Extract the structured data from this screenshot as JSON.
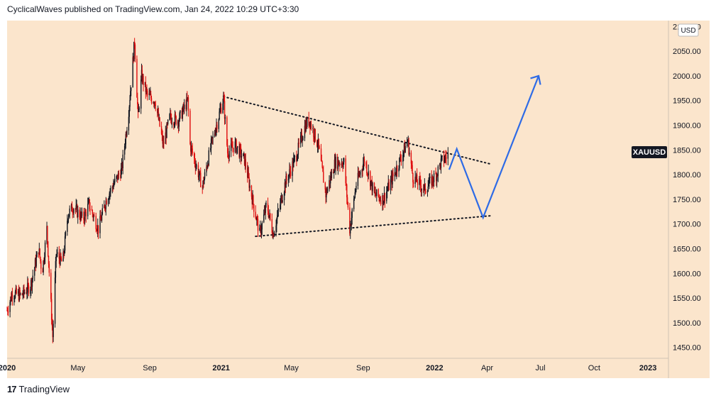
{
  "header": {
    "text": "CyclicalWaves published on TradingView.com, Jan 24, 2022 10:29 UTC+3:30"
  },
  "footer": {
    "logo": "17",
    "brand": "TradingView"
  },
  "colors": {
    "background": "#fbe5cc",
    "up": "#131722",
    "down": "#e01010",
    "forecast": "#2e6be6",
    "trendline": "#131722"
  },
  "chart_data": {
    "type": "candlestick",
    "symbol": "XAUUSD",
    "currency": "USD",
    "yticks": [
      "1450.00",
      "1500.00",
      "1550.00",
      "1600.00",
      "1650.00",
      "1700.00",
      "1750.00",
      "1800.00",
      "1850.00",
      "1900.00",
      "1950.00",
      "2000.00",
      "2050.00",
      "2100.00"
    ],
    "ylim": [
      1428,
      2112
    ],
    "xlim": [
      "2020-01-01",
      "2023-02-05"
    ],
    "xticks": [
      {
        "label": "2020",
        "date": "2020-01-01",
        "bold": true
      },
      {
        "label": "May",
        "date": "2020-05-01",
        "bold": false
      },
      {
        "label": "Sep",
        "date": "2020-09-01",
        "bold": false
      },
      {
        "label": "2021",
        "date": "2021-01-01",
        "bold": true
      },
      {
        "label": "May",
        "date": "2021-05-01",
        "bold": false
      },
      {
        "label": "Sep",
        "date": "2021-09-01",
        "bold": false
      },
      {
        "label": "2022",
        "date": "2022-01-01",
        "bold": true
      },
      {
        "label": "Apr",
        "date": "2022-04-01",
        "bold": false
      },
      {
        "label": "Jul",
        "date": "2022-07-01",
        "bold": false
      },
      {
        "label": "Oct",
        "date": "2022-10-01",
        "bold": false
      },
      {
        "label": "2023",
        "date": "2023-01-01",
        "bold": true
      }
    ],
    "price_path": [
      [
        "2020-01-01",
        1525
      ],
      [
        "2020-01-10",
        1560
      ],
      [
        "2020-01-25",
        1555
      ],
      [
        "2020-02-10",
        1575
      ],
      [
        "2020-02-24",
        1650
      ],
      [
        "2020-03-01",
        1600
      ],
      [
        "2020-03-09",
        1690
      ],
      [
        "2020-03-19",
        1472
      ],
      [
        "2020-03-25",
        1640
      ],
      [
        "2020-04-05",
        1620
      ],
      [
        "2020-04-14",
        1720
      ],
      [
        "2020-04-23",
        1735
      ],
      [
        "2020-05-10",
        1710
      ],
      [
        "2020-05-20",
        1740
      ],
      [
        "2020-06-05",
        1690
      ],
      [
        "2020-06-20",
        1755
      ],
      [
        "2020-07-01",
        1780
      ],
      [
        "2020-07-15",
        1810
      ],
      [
        "2020-07-27",
        1930
      ],
      [
        "2020-08-06",
        2070
      ],
      [
        "2020-08-12",
        1915
      ],
      [
        "2020-08-18",
        2000
      ],
      [
        "2020-08-28",
        1960
      ],
      [
        "2020-09-10",
        1950
      ],
      [
        "2020-09-24",
        1860
      ],
      [
        "2020-10-05",
        1915
      ],
      [
        "2020-10-20",
        1910
      ],
      [
        "2020-11-05",
        1950
      ],
      [
        "2020-11-09",
        1860
      ],
      [
        "2020-11-30",
        1775
      ],
      [
        "2020-12-15",
        1860
      ],
      [
        "2021-01-05",
        1955
      ],
      [
        "2021-01-12",
        1845
      ],
      [
        "2021-01-25",
        1860
      ],
      [
        "2021-02-10",
        1830
      ],
      [
        "2021-02-26",
        1735
      ],
      [
        "2021-03-08",
        1680
      ],
      [
        "2021-03-20",
        1740
      ],
      [
        "2021-03-31",
        1680
      ],
      [
        "2021-04-20",
        1780
      ],
      [
        "2021-05-10",
        1840
      ],
      [
        "2021-05-25",
        1900
      ],
      [
        "2021-06-01",
        1910
      ],
      [
        "2021-06-16",
        1860
      ],
      [
        "2021-06-29",
        1760
      ],
      [
        "2021-07-15",
        1825
      ],
      [
        "2021-07-30",
        1825
      ],
      [
        "2021-08-09",
        1690
      ],
      [
        "2021-08-20",
        1780
      ],
      [
        "2021-09-03",
        1830
      ],
      [
        "2021-09-20",
        1760
      ],
      [
        "2021-10-05",
        1750
      ],
      [
        "2021-10-20",
        1790
      ],
      [
        "2021-11-10",
        1850
      ],
      [
        "2021-11-16",
        1870
      ],
      [
        "2021-11-25",
        1795
      ],
      [
        "2021-12-15",
        1770
      ],
      [
        "2022-01-04",
        1800
      ],
      [
        "2022-01-12",
        1825
      ],
      [
        "2022-01-24",
        1840
      ]
    ],
    "forecast_path": [
      [
        "2022-01-26",
        1810
      ],
      [
        "2022-02-08",
        1852
      ],
      [
        "2022-03-25",
        1713
      ],
      [
        "2022-06-28",
        2000
      ]
    ],
    "arrowhead": [
      [
        "2022-06-14",
        1995
      ],
      [
        "2022-06-28",
        2000
      ],
      [
        "2022-07-01",
        1982
      ]
    ],
    "trendlines": [
      {
        "from": [
          "2021-01-05",
          1958
        ],
        "to": [
          "2022-04-05",
          1822
        ]
      },
      {
        "from": [
          "2021-03-01",
          1675
        ],
        "to": [
          "2022-04-10",
          1717
        ]
      }
    ]
  }
}
